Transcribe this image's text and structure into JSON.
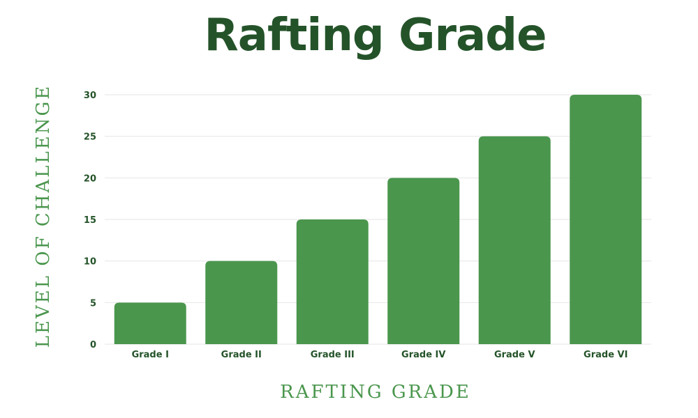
{
  "colors": {
    "bar": "#4a964d",
    "title": "#245329",
    "axis_label": "#4a964d",
    "tick": "#245329",
    "grid": "#e6e6e6"
  },
  "chart_data": {
    "type": "bar",
    "title": "Rafting Grade",
    "xlabel": "RAFTING GRADE",
    "ylabel": "LEVEL OF CHALLENGE",
    "categories": [
      "Grade I",
      "Grade II",
      "Grade III",
      "Grade IV",
      "Grade V",
      "Grade VI"
    ],
    "values": [
      5,
      10,
      15,
      20,
      25,
      30
    ],
    "ylim": [
      0,
      30
    ],
    "yticks": [
      "0",
      "5",
      "10",
      "15",
      "20",
      "25",
      "30"
    ],
    "grid": true,
    "legend": "none"
  }
}
